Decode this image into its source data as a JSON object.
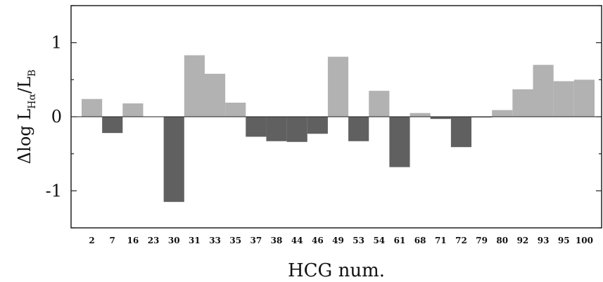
{
  "chart_data": {
    "type": "bar",
    "xlabel": "HCG num.",
    "ylabel": {
      "prefix": "Δlog L",
      "subscript1": "Hα",
      "separator": "/L",
      "subscript2": "B"
    },
    "categories": [
      "2",
      "7",
      "16",
      "23",
      "30",
      "31",
      "33",
      "35",
      "37",
      "38",
      "44",
      "46",
      "49",
      "53",
      "54",
      "61",
      "68",
      "71",
      "72",
      "79",
      "80",
      "92",
      "93",
      "95",
      "100"
    ],
    "values": [
      0.24,
      -0.22,
      0.18,
      0,
      -1.15,
      0.83,
      0.58,
      0.19,
      -0.27,
      -0.33,
      -0.34,
      -0.23,
      0.81,
      -0.33,
      0.35,
      -0.68,
      0.05,
      -0.03,
      -0.41,
      -0.01,
      0.09,
      0.37,
      0.7,
      0.48,
      0.5
    ],
    "ylim": [
      -1.5,
      1.5
    ],
    "yticks": [
      -1,
      0,
      1
    ],
    "ytick_labels": [
      "-1",
      "0",
      "1"
    ],
    "minor_yticks": [
      -1.5,
      -0.5,
      0.5,
      1.5
    ],
    "grid": false,
    "colors": {
      "positive": "#b2b2b2",
      "negative": "#606060",
      "axis": "#222222"
    }
  }
}
